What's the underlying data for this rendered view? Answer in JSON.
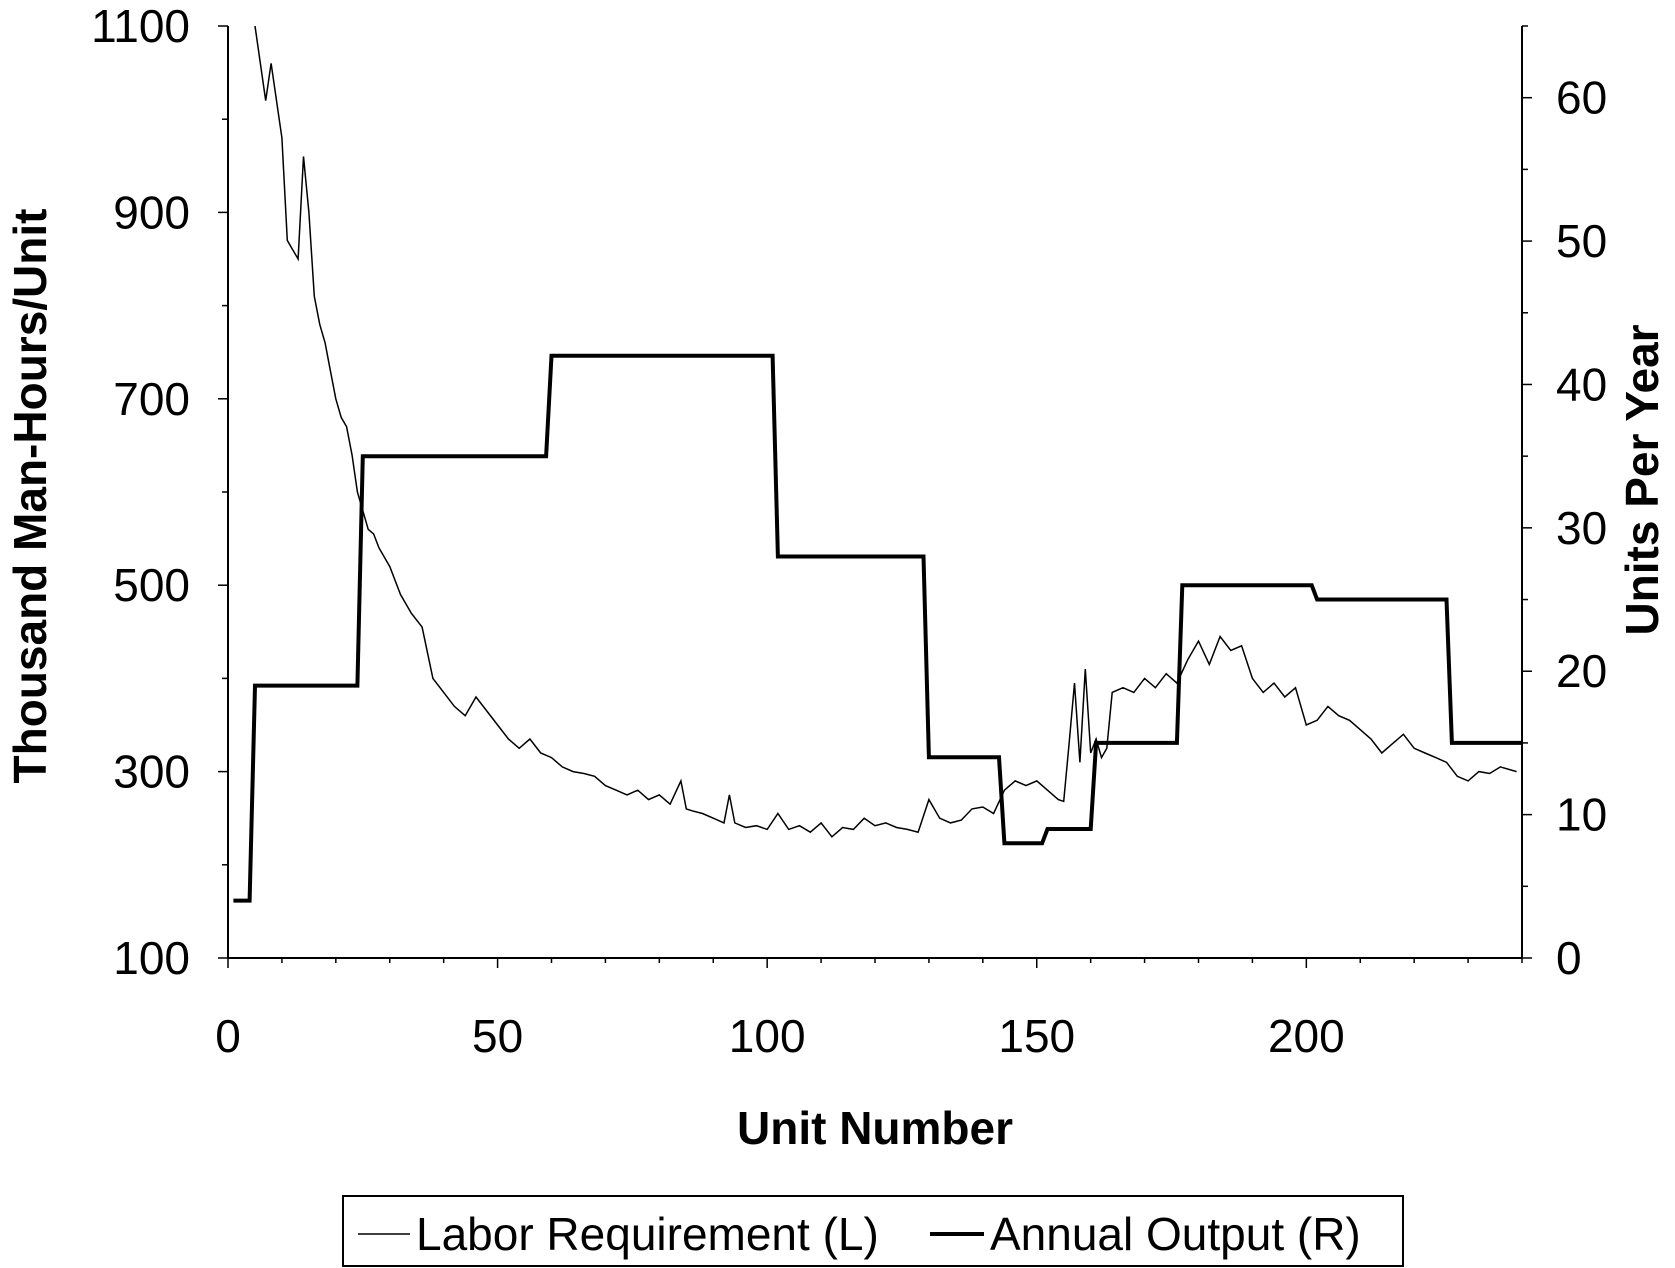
{
  "chart_data": {
    "type": "line",
    "xlabel": "Unit Number",
    "ylabel_left": "Thousand Man-Hours/Unit",
    "ylabel_right": "Units Per Year",
    "xlim": [
      0,
      240
    ],
    "ylim_left": [
      100,
      1100
    ],
    "ylim_right": [
      0,
      65
    ],
    "x_ticks": [
      0,
      50,
      100,
      150,
      200
    ],
    "y_ticks_left": [
      100,
      300,
      500,
      700,
      900,
      1100
    ],
    "y_ticks_right": [
      0,
      10,
      20,
      30,
      40,
      50,
      60
    ],
    "legend": {
      "placement": "bottom",
      "entries": [
        "Labor Requirement (L)",
        "Annual Output (R)"
      ]
    },
    "grid": false,
    "series": [
      {
        "name": "Labor Requirement (L)",
        "axis": "left",
        "style": "thin",
        "x": [
          5,
          7,
          8,
          10,
          11,
          12,
          13,
          14,
          15,
          16,
          17,
          18,
          19,
          20,
          21,
          22,
          23,
          24,
          25,
          26,
          27,
          28,
          30,
          32,
          34,
          36,
          38,
          40,
          42,
          44,
          46,
          48,
          50,
          52,
          54,
          56,
          58,
          60,
          62,
          64,
          66,
          68,
          70,
          72,
          74,
          76,
          78,
          80,
          82,
          84,
          85,
          86,
          88,
          90,
          92,
          93,
          94,
          96,
          98,
          100,
          102,
          104,
          106,
          108,
          110,
          112,
          114,
          116,
          118,
          120,
          122,
          124,
          126,
          128,
          130,
          132,
          134,
          136,
          138,
          140,
          142,
          144,
          146,
          148,
          150,
          152,
          154,
          155,
          156,
          157,
          158,
          159,
          160,
          161,
          162,
          163,
          164,
          166,
          168,
          170,
          172,
          174,
          176,
          178,
          180,
          182,
          184,
          186,
          188,
          190,
          192,
          194,
          196,
          198,
          200,
          202,
          204,
          206,
          208,
          210,
          212,
          214,
          216,
          218,
          220,
          222,
          224,
          226,
          228,
          230,
          232,
          234,
          236,
          239
        ],
        "values": [
          1100,
          1020,
          1060,
          980,
          870,
          860,
          850,
          960,
          900,
          810,
          780,
          760,
          730,
          700,
          680,
          670,
          640,
          600,
          580,
          560,
          555,
          540,
          520,
          490,
          470,
          455,
          400,
          385,
          370,
          360,
          380,
          365,
          350,
          335,
          325,
          335,
          320,
          315,
          305,
          300,
          298,
          295,
          285,
          280,
          275,
          280,
          270,
          275,
          265,
          290,
          260,
          258,
          255,
          250,
          245,
          275,
          245,
          240,
          242,
          238,
          255,
          238,
          242,
          235,
          245,
          230,
          240,
          238,
          250,
          242,
          245,
          240,
          238,
          235,
          270,
          250,
          245,
          248,
          260,
          262,
          255,
          280,
          290,
          285,
          290,
          280,
          270,
          268,
          330,
          395,
          310,
          410,
          320,
          335,
          315,
          325,
          385,
          390,
          385,
          400,
          390,
          405,
          395,
          420,
          440,
          415,
          445,
          430,
          435,
          400,
          385,
          395,
          380,
          390,
          350,
          355,
          370,
          360,
          355,
          345,
          335,
          320,
          330,
          340,
          325,
          320,
          315,
          310,
          295,
          290,
          300,
          298,
          305,
          300
        ]
      },
      {
        "name": "Annual Output (R)",
        "axis": "right",
        "style": "thick",
        "x": [
          1,
          4,
          5,
          24,
          25,
          59,
          60,
          101,
          102,
          129,
          130,
          143,
          144,
          151,
          152,
          160,
          161,
          176,
          177,
          201,
          202,
          226,
          227,
          240
        ],
        "values": [
          4,
          4,
          19,
          19,
          35,
          35,
          42,
          42,
          28,
          28,
          14,
          14,
          8,
          8,
          9,
          9,
          15,
          15,
          26,
          26,
          25,
          25,
          15,
          15
        ]
      }
    ]
  }
}
